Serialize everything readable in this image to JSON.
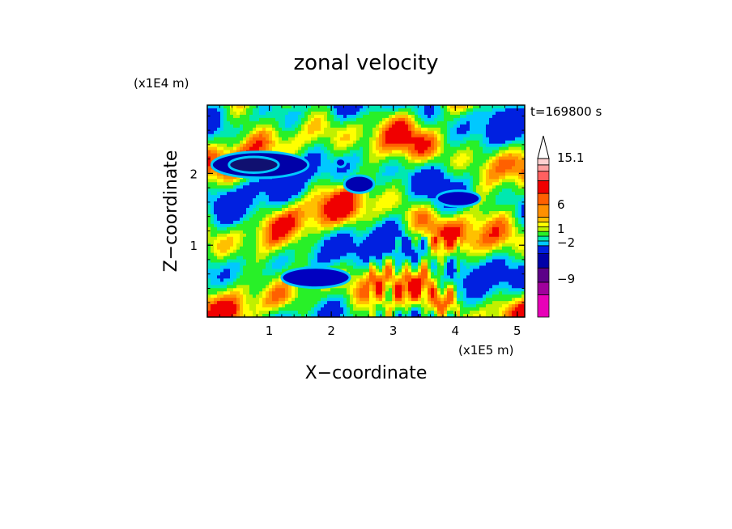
{
  "chart_data": {
    "type": "heatmap",
    "title": "zonal velocity",
    "xlabel": "X−coordinate",
    "ylabel": "Z−coordinate",
    "x_scale_label": "(x1E5 m)",
    "y_scale_label": "(x1E4 m)",
    "time_label": "t=169800 s",
    "xlim": [
      0,
      5.12
    ],
    "ylim": [
      0,
      2.95
    ],
    "x_ticks": [
      {
        "value": 1,
        "label": "1"
      },
      {
        "value": 2,
        "label": "2"
      },
      {
        "value": 3,
        "label": "3"
      },
      {
        "value": 4,
        "label": "4"
      },
      {
        "value": 5,
        "label": "5"
      }
    ],
    "y_ticks": [
      {
        "value": 1,
        "label": "1"
      },
      {
        "value": 2,
        "label": "2"
      }
    ],
    "colorbar": {
      "levels": [
        {
          "color": "#e800b8"
        },
        {
          "color": "#a0009c"
        },
        {
          "color": "#5c0088"
        },
        {
          "color": "#0000a8"
        },
        {
          "color": "#0020e0"
        },
        {
          "color": "#00c8ff"
        },
        {
          "color": "#00e8b0"
        },
        {
          "color": "#28f028"
        },
        {
          "color": "#c0f000"
        },
        {
          "color": "#ffff00"
        },
        {
          "color": "#ffc000"
        },
        {
          "color": "#ff9000"
        },
        {
          "color": "#ff6000"
        },
        {
          "color": "#f00000"
        },
        {
          "color": "#ff6060"
        },
        {
          "color": "#ffa0a0"
        },
        {
          "color": "#ffd0d0"
        }
      ],
      "labels": [
        "15.1",
        "6",
        "1",
        "−2",
        "−9"
      ],
      "arrow_color": "#ffffff"
    },
    "field_features": [
      {
        "x": 0.85,
        "z": 2.12,
        "rx": 0.78,
        "rz": 0.18,
        "color": "#0000a8"
      },
      {
        "x": 0.75,
        "z": 2.12,
        "rx": 0.4,
        "rz": 0.11,
        "color": "#101070"
      },
      {
        "x": 1.75,
        "z": 0.55,
        "rx": 0.55,
        "rz": 0.14,
        "color": "#0000c0"
      },
      {
        "x": 4.05,
        "z": 1.65,
        "rx": 0.35,
        "rz": 0.11,
        "color": "#0000c0"
      },
      {
        "x": 2.45,
        "z": 1.85,
        "rx": 0.24,
        "rz": 0.12,
        "color": "#0000b0"
      },
      {
        "x": 2.15,
        "z": 2.15,
        "rx": 0.08,
        "rz": 0.06,
        "color": "#0000c0"
      }
    ]
  }
}
